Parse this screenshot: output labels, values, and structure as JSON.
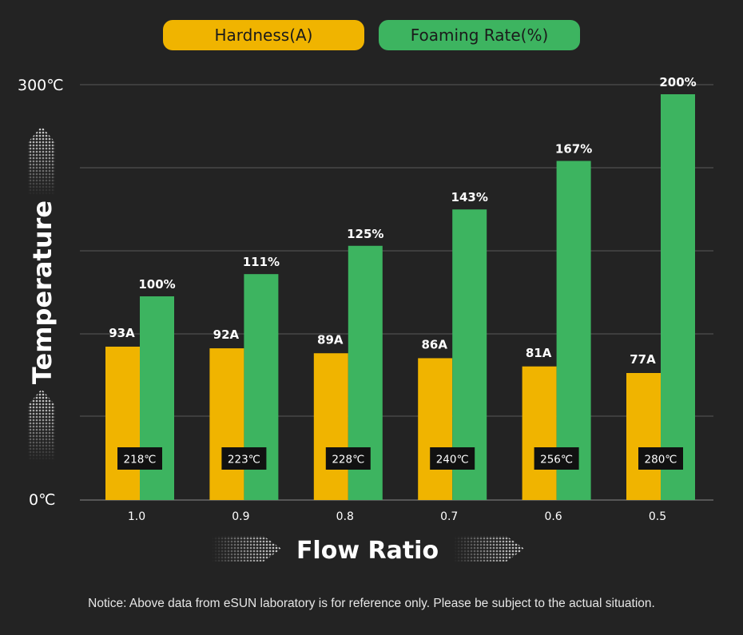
{
  "legend": {
    "hardness_label": "Hardness(A)",
    "foaming_label": "Foaming Rate(%)"
  },
  "colors": {
    "background": "#232323",
    "hardness": "#f0b400",
    "foaming": "#3db460",
    "grid": "#5a5a5a",
    "temp_box": "#111111"
  },
  "chart_data": {
    "type": "bar",
    "categories": [
      "1.0",
      "0.9",
      "0.8",
      "0.7",
      "0.6",
      "0.5"
    ],
    "series": [
      {
        "name": "Hardness(A)",
        "values": [
          93,
          92,
          89,
          86,
          81,
          77
        ],
        "labels": [
          "93A",
          "92A",
          "89A",
          "86A",
          "81A",
          "77A"
        ]
      },
      {
        "name": "Foaming Rate(%)",
        "values": [
          100,
          111,
          125,
          143,
          167,
          200
        ],
        "labels": [
          "100%",
          "111%",
          "125%",
          "143%",
          "167%",
          "200%"
        ]
      }
    ],
    "temperatures": [
      "218℃",
      "223℃",
      "228℃",
      "240℃",
      "256℃",
      "280℃"
    ],
    "ylabel": "Temperature",
    "xlabel": "Flow Ratio",
    "ytick_labels": [
      "300℃",
      "0℃"
    ],
    "grid": true,
    "legend_position": "top"
  },
  "notice": "Notice: Above data from eSUN laboratory is for reference only. Please be subject to the actual situation."
}
